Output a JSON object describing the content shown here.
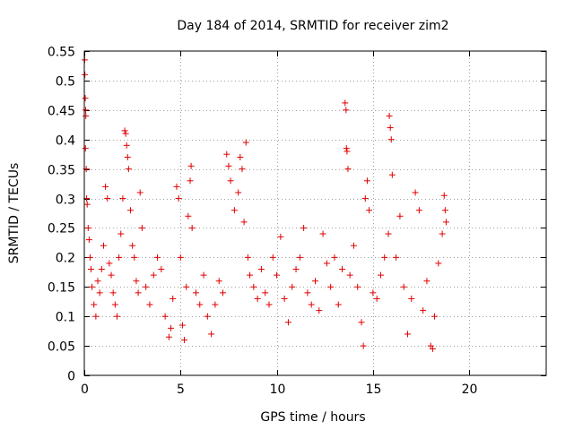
{
  "chart_data": {
    "type": "scatter",
    "title": "Day 184 of 2014, SRMTID for receiver zim2",
    "xlabel": "GPS time / hours",
    "ylabel": "SRMTID / TECUs",
    "xlim": [
      0,
      24
    ],
    "ylim": [
      0,
      0.55
    ],
    "xticks": [
      0,
      5,
      10,
      15,
      20
    ],
    "yticks": [
      0,
      0.05,
      0.1,
      0.15,
      0.2,
      0.25,
      0.3,
      0.35,
      0.4,
      0.45,
      0.5,
      0.55
    ],
    "xtick_labels": [
      "0",
      "5",
      "10",
      "15",
      "20"
    ],
    "ytick_labels": [
      "0",
      "0.05",
      "0.1",
      "0.15",
      "0.2",
      "0.25",
      "0.3",
      "0.35",
      "0.4",
      "0.45",
      "0.5",
      "0.55"
    ],
    "grid": true,
    "marker": "+",
    "color": "#e00000",
    "series": [
      {
        "name": "SRMTID",
        "points": [
          [
            0.02,
            0.535
          ],
          [
            0.03,
            0.51
          ],
          [
            0.05,
            0.47
          ],
          [
            0.07,
            0.45
          ],
          [
            0.08,
            0.44
          ],
          [
            0.06,
            0.385
          ],
          [
            0.1,
            0.35
          ],
          [
            0.12,
            0.3
          ],
          [
            0.15,
            0.29
          ],
          [
            0.2,
            0.25
          ],
          [
            0.25,
            0.23
          ],
          [
            0.3,
            0.2
          ],
          [
            0.35,
            0.18
          ],
          [
            0.4,
            0.15
          ],
          [
            0.5,
            0.12
          ],
          [
            0.6,
            0.1
          ],
          [
            0.7,
            0.16
          ],
          [
            0.8,
            0.14
          ],
          [
            0.9,
            0.18
          ],
          [
            1.0,
            0.22
          ],
          [
            1.1,
            0.32
          ],
          [
            1.2,
            0.3
          ],
          [
            1.3,
            0.19
          ],
          [
            1.4,
            0.17
          ],
          [
            1.5,
            0.14
          ],
          [
            1.6,
            0.12
          ],
          [
            1.7,
            0.1
          ],
          [
            1.8,
            0.2
          ],
          [
            1.9,
            0.24
          ],
          [
            2.0,
            0.3
          ],
          [
            2.1,
            0.415
          ],
          [
            2.15,
            0.41
          ],
          [
            2.2,
            0.39
          ],
          [
            2.25,
            0.37
          ],
          [
            2.3,
            0.35
          ],
          [
            2.4,
            0.28
          ],
          [
            2.5,
            0.22
          ],
          [
            2.6,
            0.2
          ],
          [
            2.7,
            0.16
          ],
          [
            2.8,
            0.14
          ],
          [
            2.9,
            0.31
          ],
          [
            3.0,
            0.25
          ],
          [
            3.2,
            0.15
          ],
          [
            3.4,
            0.12
          ],
          [
            3.6,
            0.17
          ],
          [
            3.8,
            0.2
          ],
          [
            4.0,
            0.18
          ],
          [
            4.2,
            0.1
          ],
          [
            4.4,
            0.065
          ],
          [
            4.5,
            0.08
          ],
          [
            4.6,
            0.13
          ],
          [
            4.8,
            0.32
          ],
          [
            4.9,
            0.3
          ],
          [
            5.0,
            0.2
          ],
          [
            5.1,
            0.085
          ],
          [
            5.2,
            0.06
          ],
          [
            5.3,
            0.15
          ],
          [
            5.4,
            0.27
          ],
          [
            5.5,
            0.33
          ],
          [
            5.55,
            0.355
          ],
          [
            5.6,
            0.25
          ],
          [
            5.8,
            0.14
          ],
          [
            6.0,
            0.12
          ],
          [
            6.2,
            0.17
          ],
          [
            6.4,
            0.1
          ],
          [
            6.6,
            0.07
          ],
          [
            6.8,
            0.12
          ],
          [
            7.0,
            0.16
          ],
          [
            7.2,
            0.14
          ],
          [
            7.4,
            0.375
          ],
          [
            7.5,
            0.355
          ],
          [
            7.6,
            0.33
          ],
          [
            7.8,
            0.28
          ],
          [
            8.0,
            0.31
          ],
          [
            8.1,
            0.37
          ],
          [
            8.2,
            0.35
          ],
          [
            8.3,
            0.26
          ],
          [
            8.4,
            0.395
          ],
          [
            8.5,
            0.2
          ],
          [
            8.6,
            0.17
          ],
          [
            8.8,
            0.15
          ],
          [
            9.0,
            0.13
          ],
          [
            9.2,
            0.18
          ],
          [
            9.4,
            0.14
          ],
          [
            9.6,
            0.12
          ],
          [
            9.8,
            0.2
          ],
          [
            10.0,
            0.17
          ],
          [
            10.2,
            0.235
          ],
          [
            10.4,
            0.13
          ],
          [
            10.6,
            0.09
          ],
          [
            10.8,
            0.15
          ],
          [
            11.0,
            0.18
          ],
          [
            11.2,
            0.2
          ],
          [
            11.4,
            0.25
          ],
          [
            11.6,
            0.14
          ],
          [
            11.8,
            0.12
          ],
          [
            12.0,
            0.16
          ],
          [
            12.2,
            0.11
          ],
          [
            12.4,
            0.24
          ],
          [
            12.6,
            0.19
          ],
          [
            12.8,
            0.15
          ],
          [
            13.0,
            0.2
          ],
          [
            13.2,
            0.12
          ],
          [
            13.4,
            0.18
          ],
          [
            13.55,
            0.462
          ],
          [
            13.6,
            0.45
          ],
          [
            13.62,
            0.385
          ],
          [
            13.65,
            0.38
          ],
          [
            13.7,
            0.35
          ],
          [
            13.8,
            0.17
          ],
          [
            14.0,
            0.22
          ],
          [
            14.2,
            0.15
          ],
          [
            14.4,
            0.09
          ],
          [
            14.5,
            0.05
          ],
          [
            14.6,
            0.3
          ],
          [
            14.7,
            0.33
          ],
          [
            14.8,
            0.28
          ],
          [
            15.0,
            0.14
          ],
          [
            15.2,
            0.13
          ],
          [
            15.4,
            0.17
          ],
          [
            15.6,
            0.2
          ],
          [
            15.8,
            0.24
          ],
          [
            15.85,
            0.44
          ],
          [
            15.9,
            0.42
          ],
          [
            15.95,
            0.4
          ],
          [
            16.0,
            0.34
          ],
          [
            16.2,
            0.2
          ],
          [
            16.4,
            0.27
          ],
          [
            16.6,
            0.15
          ],
          [
            16.8,
            0.07
          ],
          [
            17.0,
            0.13
          ],
          [
            17.2,
            0.31
          ],
          [
            17.4,
            0.28
          ],
          [
            17.6,
            0.11
          ],
          [
            17.8,
            0.16
          ],
          [
            18.0,
            0.05
          ],
          [
            18.1,
            0.045
          ],
          [
            18.2,
            0.1
          ],
          [
            18.4,
            0.19
          ],
          [
            18.6,
            0.24
          ],
          [
            18.7,
            0.305
          ],
          [
            18.75,
            0.28
          ],
          [
            18.8,
            0.26
          ]
        ]
      }
    ]
  }
}
